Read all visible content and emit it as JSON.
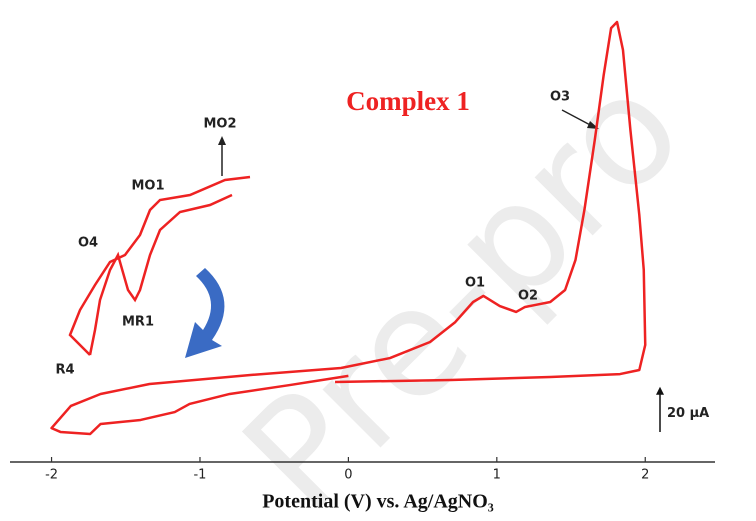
{
  "chart_data": {
    "type": "line",
    "title": "Complex 1",
    "xlabel": "Potential (V) vs. Ag/AgNO₃",
    "xlim": [
      -2.28,
      2.47
    ],
    "xticks": [
      -2,
      -1,
      0,
      1,
      2
    ],
    "ylim": [
      -20,
      180
    ],
    "series": [
      {
        "color": "#ee2222",
        "x": [
          -0.09,
          0.69,
          1.36,
          1.83,
          1.96,
          2.0,
          1.99,
          1.96,
          1.9,
          1.85,
          1.81,
          1.77,
          1.72,
          1.66,
          1.59,
          1.53,
          1.46,
          1.36,
          1.26,
          1.19,
          1.13,
          1.02,
          0.91,
          0.84,
          0.72,
          0.55,
          0.28,
          -0.05,
          -0.66,
          -1.34,
          -1.67,
          -1.87,
          -2.0,
          -1.94,
          -1.74,
          -1.67,
          -1.4,
          -1.17,
          -1.07,
          -0.8,
          -0.39,
          0.0
        ],
        "values": [
          15.4,
          16.3,
          17.6,
          18.9,
          20.7,
          31.8,
          65.0,
          89.3,
          126.9,
          162.3,
          174.7,
          172.0,
          151.2,
          122.5,
          91.5,
          69.4,
          56.1,
          50.8,
          49.5,
          48.6,
          46.4,
          49.0,
          53.5,
          50.8,
          41.9,
          33.1,
          26.0,
          21.6,
          18.5,
          14.5,
          10.1,
          4.8,
          -5.0,
          -6.7,
          -7.6,
          -3.2,
          -1.4,
          2.1,
          5.7,
          10.1,
          14.1,
          18.1
        ]
      }
    ],
    "annotations": [
      "O1",
      "O2",
      "O3"
    ],
    "inset_labels": [
      "MO2",
      "MO1",
      "O4",
      "MR1",
      "R4"
    ],
    "scale_bar": {
      "value": 20,
      "label": "20 µA"
    },
    "watermark": "Pre-pro"
  }
}
